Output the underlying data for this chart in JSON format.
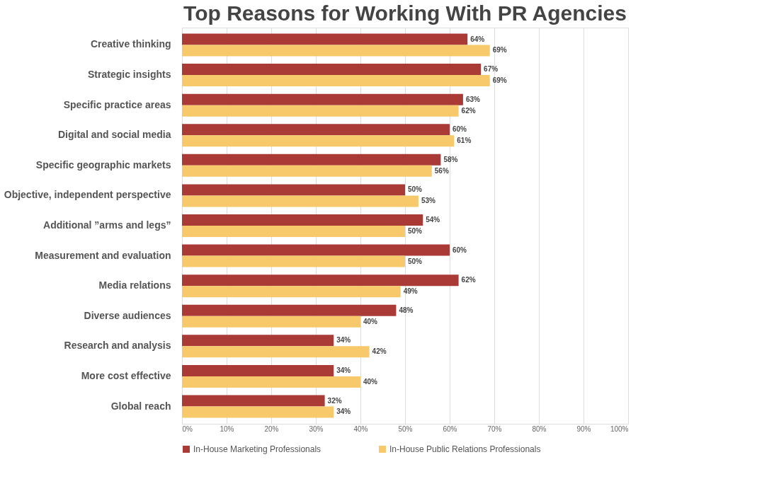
{
  "chart_data": {
    "type": "bar",
    "orientation": "horizontal",
    "title": "Top Reasons for Working With PR Agencies",
    "categories": [
      "Creative thinking",
      "Strategic insights",
      "Specific practice areas",
      "Digital and social media",
      "Specific geographic markets",
      "Objective, independent perspective",
      "Additional ”arms and legs”",
      "Measurement and evaluation",
      "Media relations",
      "Diverse audiences",
      "Research and analysis",
      "More cost effective",
      "Global reach"
    ],
    "series": [
      {
        "name": "In-House Marketing Professionals",
        "color": "#a93a36",
        "values": [
          64,
          67,
          63,
          60,
          58,
          50,
          54,
          60,
          62,
          48,
          34,
          34,
          32
        ],
        "value_labels": [
          "64%",
          "67%",
          "63%",
          "60%",
          "58%",
          "50%",
          "54%",
          "60%",
          "62%",
          "48%",
          "34%",
          "34%",
          "32%"
        ]
      },
      {
        "name": "In-House Public Relations Professionals",
        "color": "#f7c96b",
        "values": [
          69,
          69,
          62,
          61,
          56,
          53,
          50,
          50,
          49,
          40,
          42,
          40,
          34
        ],
        "value_labels": [
          "69%",
          "69%",
          "62%",
          "61%",
          "56%",
          "53%",
          "50%",
          "50%",
          "49%",
          "40%",
          "42%",
          "40%",
          "34%"
        ]
      }
    ],
    "xlim": [
      0,
      100
    ],
    "xticks": [
      {
        "value": 0,
        "label": "0%"
      },
      {
        "value": 10,
        "label": "10%"
      },
      {
        "value": 20,
        "label": "20%"
      },
      {
        "value": 30,
        "label": "30%"
      },
      {
        "value": 40,
        "label": "40%"
      },
      {
        "value": 50,
        "label": "50%"
      },
      {
        "value": 60,
        "label": "60%"
      },
      {
        "value": 70,
        "label": "70%"
      },
      {
        "value": 80,
        "label": "80%"
      },
      {
        "value": 90,
        "label": "90%"
      },
      {
        "value": 100,
        "label": "100%"
      }
    ],
    "grid": "x",
    "legend": "bottom"
  }
}
